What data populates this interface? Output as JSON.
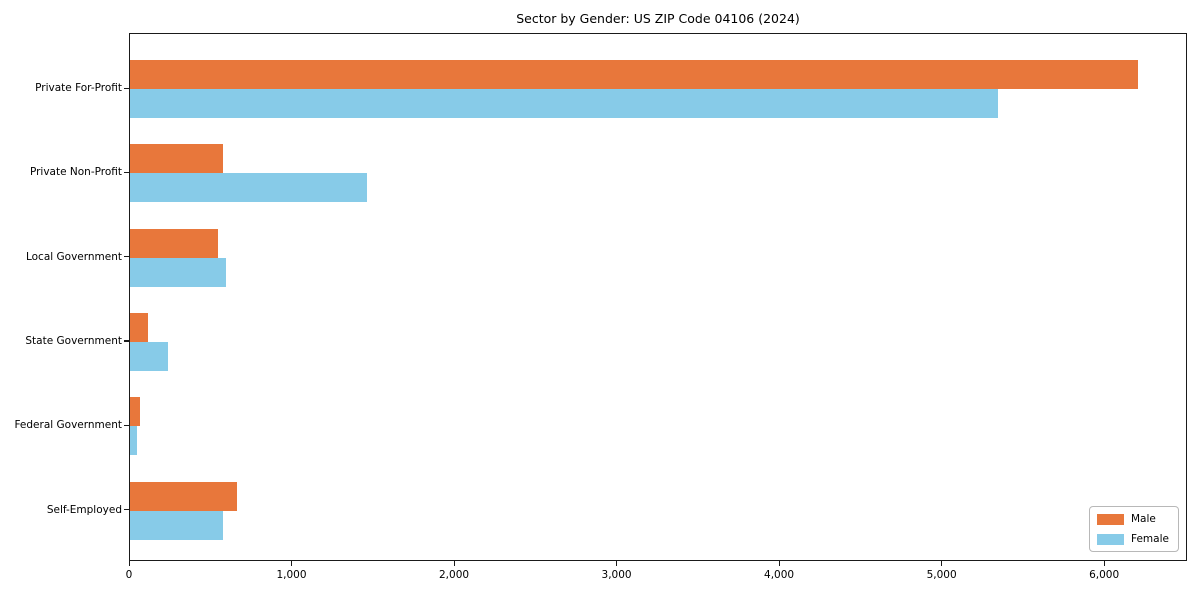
{
  "chart_data": {
    "type": "bar",
    "orientation": "horizontal",
    "title": "Sector by Gender: US ZIP Code 04106 (2024)",
    "categories": [
      "Private For-Profit",
      "Private Non-Profit",
      "Local Government",
      "State Government",
      "Federal Government",
      "Self-Employed"
    ],
    "series": [
      {
        "name": "Male",
        "color": "#E8773B",
        "values": [
          6200,
          575,
          540,
          110,
          60,
          660
        ]
      },
      {
        "name": "Female",
        "color": "#87CBE8",
        "values": [
          5340,
          1460,
          590,
          235,
          45,
          570
        ]
      }
    ],
    "xlabel": "",
    "ylabel": "",
    "xlim": [
      0,
      6510
    ],
    "x_ticks": [
      0,
      1000,
      2000,
      3000,
      4000,
      5000,
      6000
    ],
    "x_tick_labels": [
      "0",
      "1,000",
      "2,000",
      "3,000",
      "4,000",
      "5,000",
      "6,000"
    ],
    "grid": false,
    "legend": {
      "position": "lower right"
    }
  }
}
